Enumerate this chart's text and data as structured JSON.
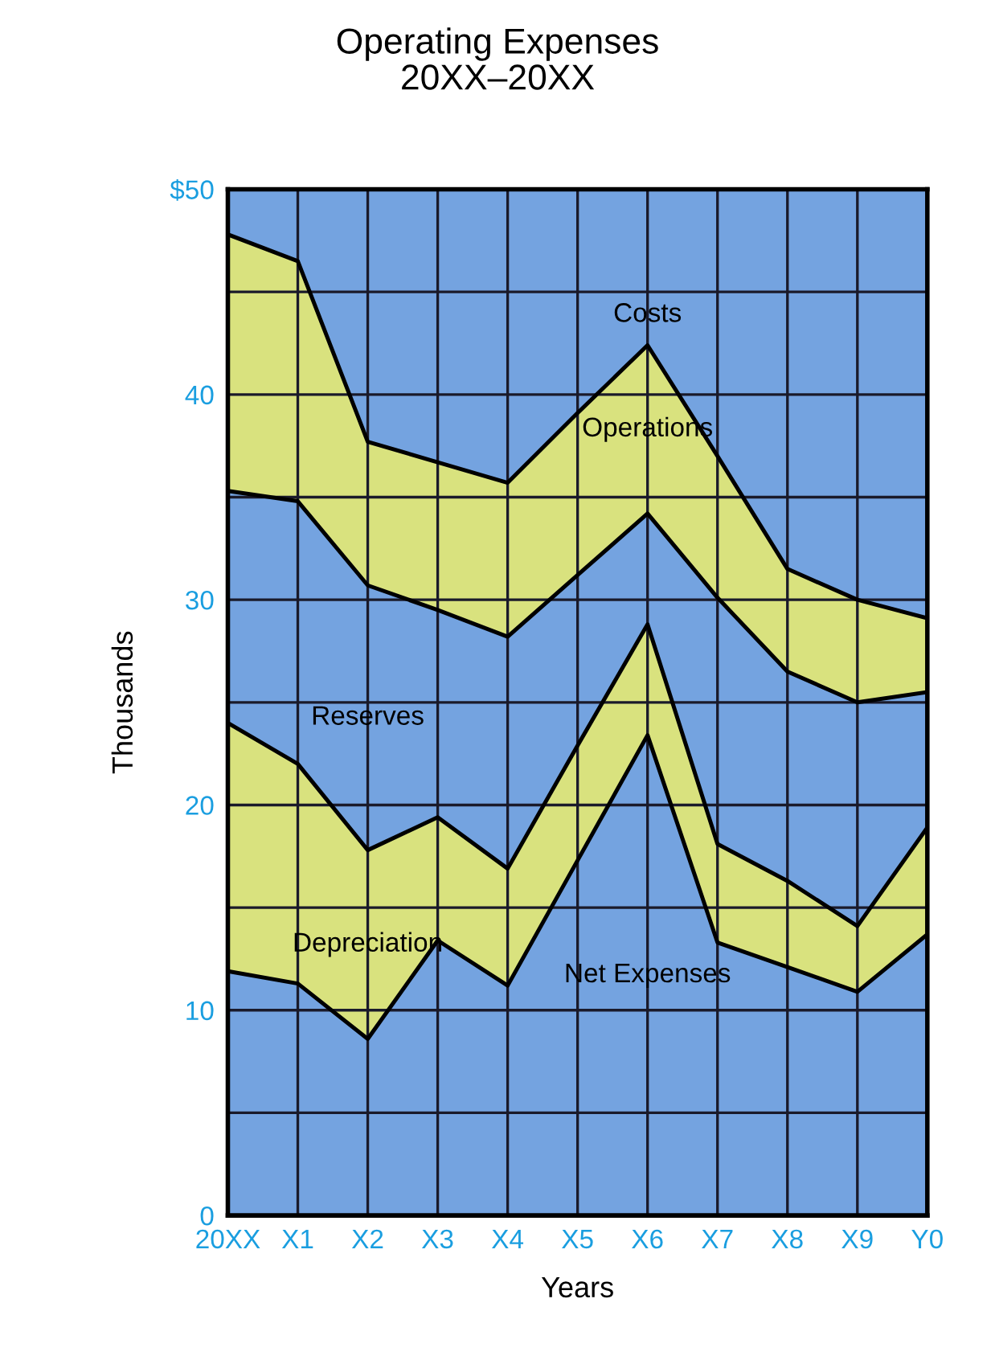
{
  "chart_data": {
    "type": "area",
    "title": "Operating Expenses",
    "subtitle": "20XX–20XX",
    "xlabel": "Years",
    "ylabel": "Thousands",
    "categories": [
      "20XX",
      "X1",
      "X2",
      "X3",
      "X4",
      "X5",
      "X6",
      "X7",
      "X8",
      "X9",
      "Y0"
    ],
    "stacked": true,
    "series": [
      {
        "name": "Net Expenses",
        "color": "#74a3e0",
        "values": [
          11.9,
          11.3,
          8.6,
          13.4,
          11.2,
          17.3,
          23.4,
          13.3,
          12.1,
          10.9,
          13.7
        ]
      },
      {
        "name": "Depreciation",
        "color": "#d9e27e",
        "values": [
          12.1,
          10.7,
          9.2,
          6.0,
          5.7,
          5.6,
          5.4,
          4.8,
          4.2,
          3.2,
          5.2
        ]
      },
      {
        "name": "Reserves",
        "color": "#74a3e0",
        "values": [
          11.3,
          12.8,
          12.9,
          10.1,
          11.3,
          8.3,
          5.4,
          12.0,
          10.2,
          10.9,
          6.6
        ]
      },
      {
        "name": "Operations",
        "color": "#d9e27e",
        "values": [
          12.5,
          11.7,
          7.0,
          7.2,
          7.5,
          7.9,
          8.2,
          6.9,
          5.0,
          5.0,
          3.6
        ]
      }
    ],
    "annotations": [
      {
        "text": "Costs",
        "x": "X6",
        "y": 42.4
      }
    ],
    "ylim": [
      0,
      50
    ],
    "yticks": [
      0,
      {
        "value": 5,
        "label": null
      },
      10,
      {
        "value": 15,
        "label": null
      },
      20,
      {
        "value": 25,
        "label": null
      },
      30,
      {
        "value": 35,
        "label": null
      },
      40,
      {
        "value": 45,
        "label": null
      },
      {
        "value": 50,
        "label": "$50"
      }
    ],
    "grid": true,
    "legend": false
  }
}
